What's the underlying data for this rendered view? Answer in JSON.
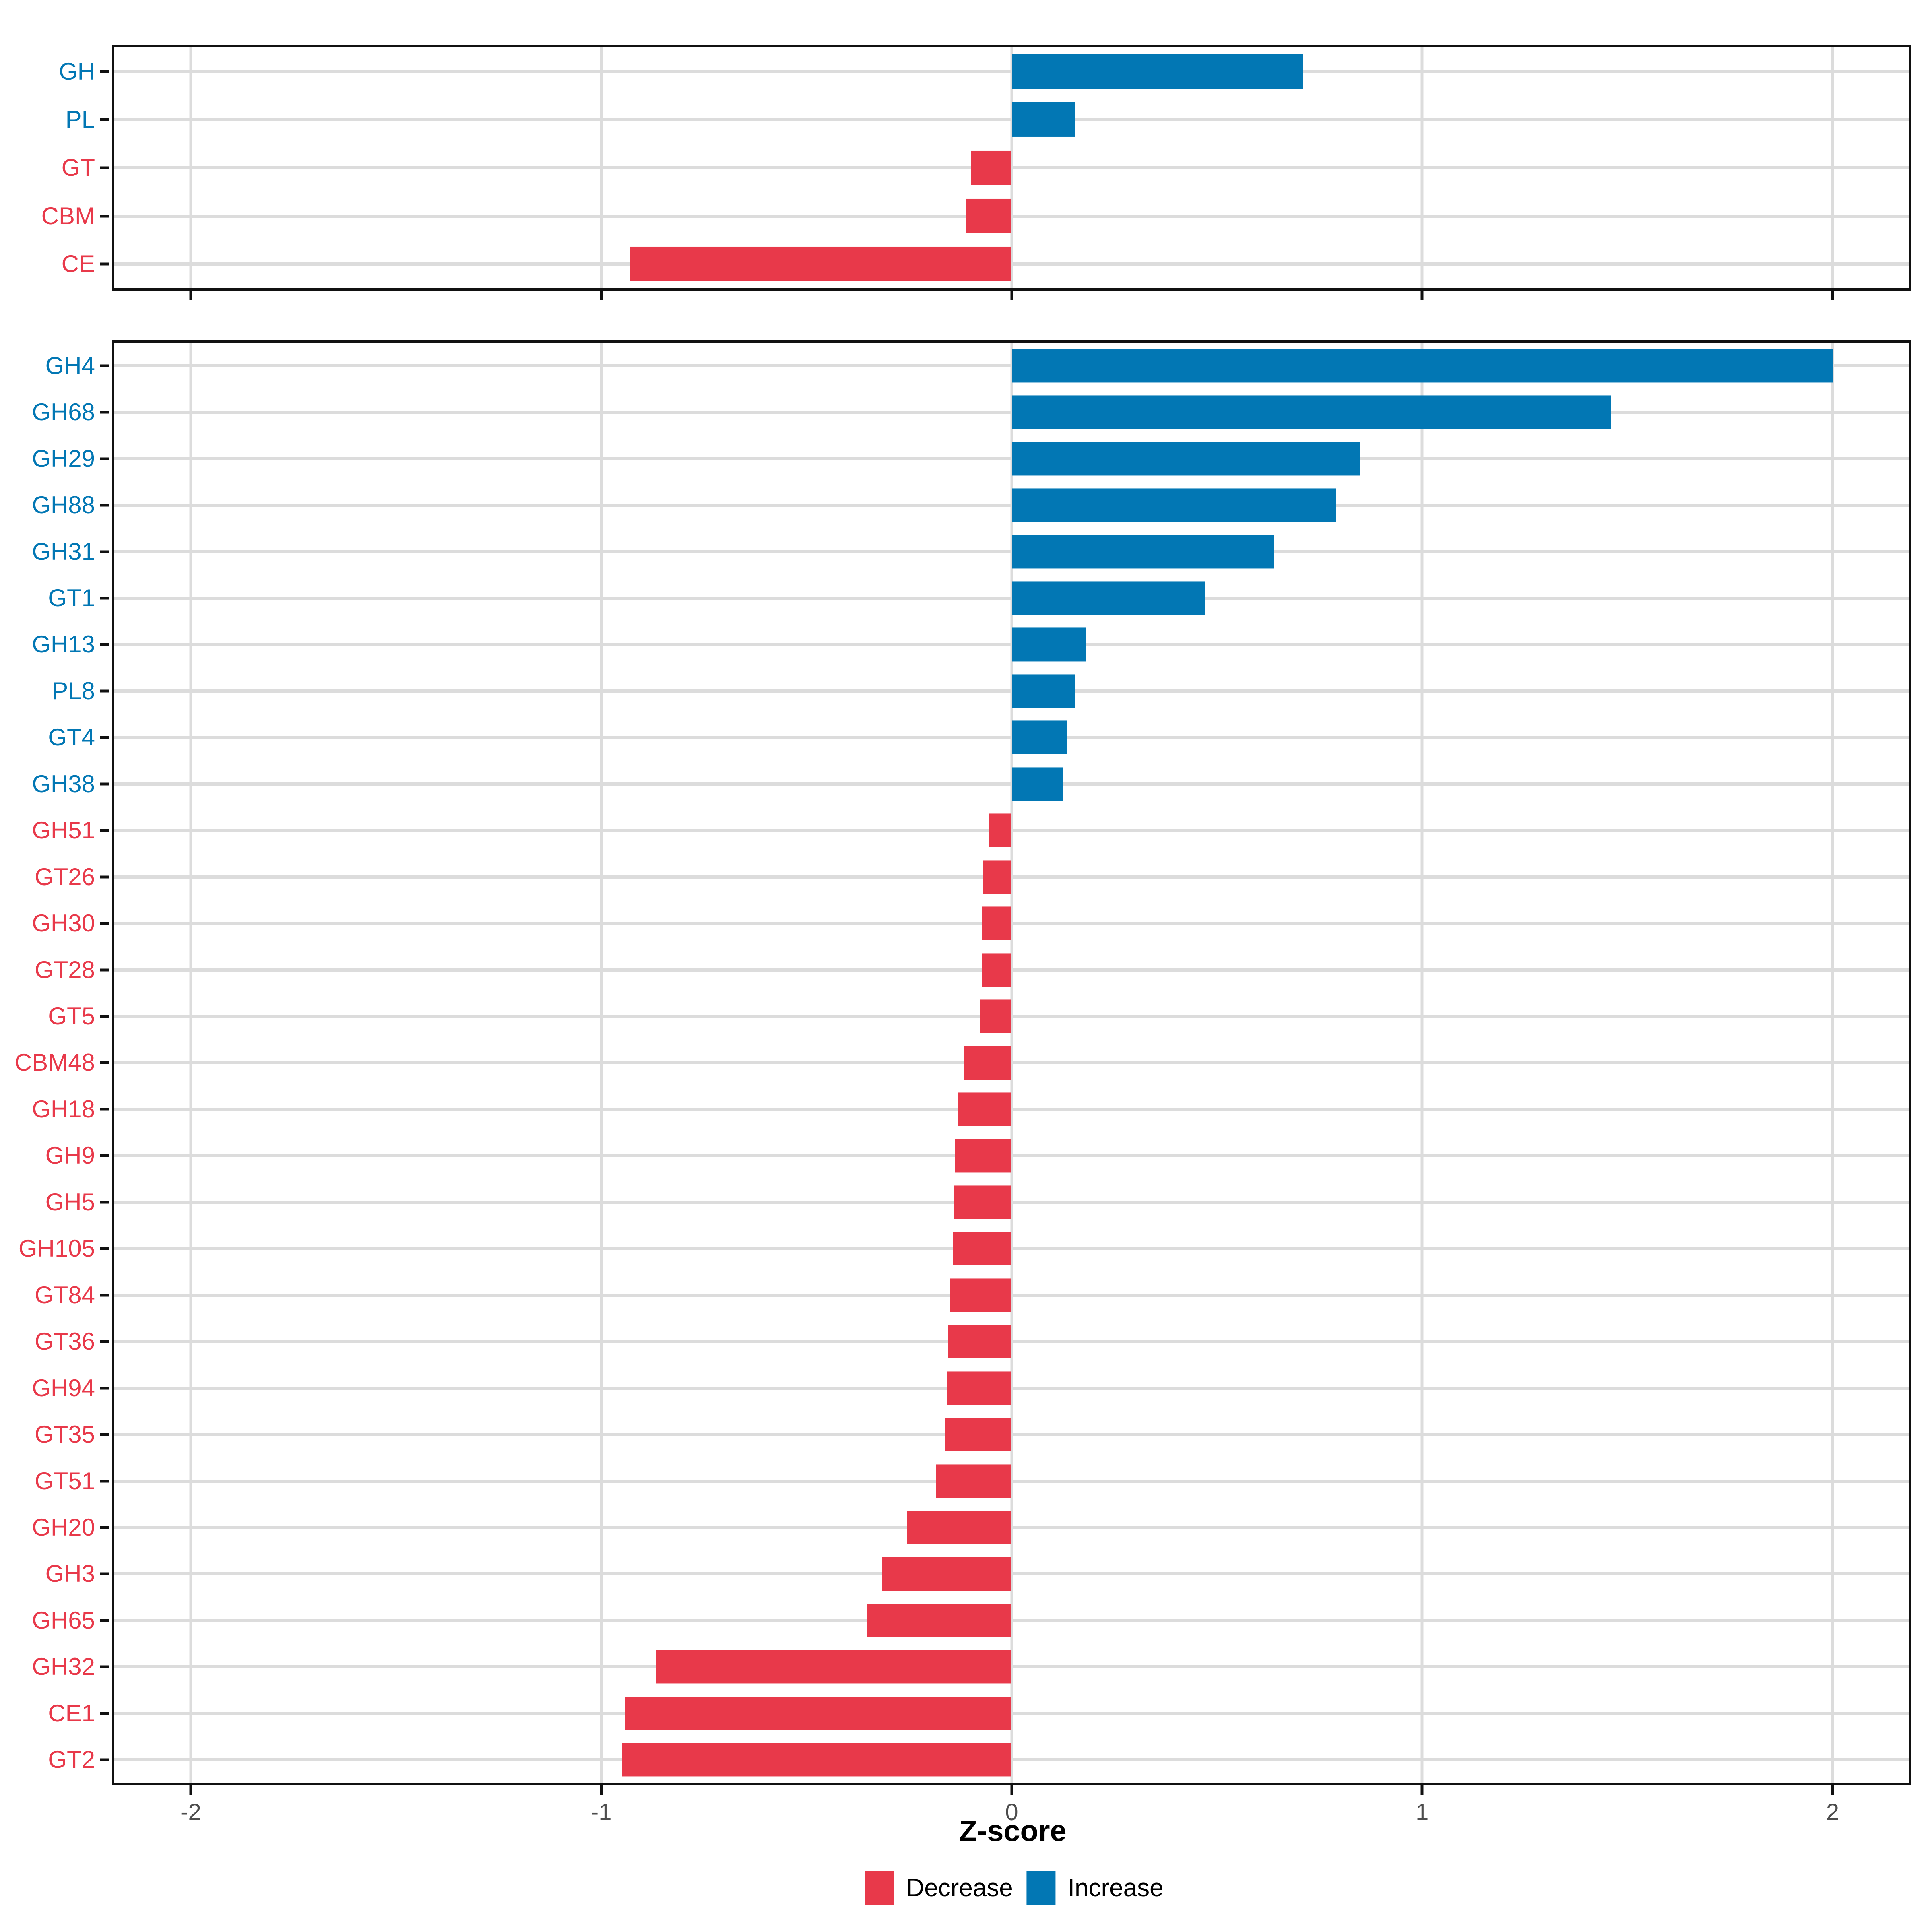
{
  "chart_data": {
    "type": "bar",
    "orientation": "horizontal",
    "xlabel": "Z-score",
    "x_ticks": [
      -2,
      -1,
      0,
      1,
      2
    ],
    "xlim": [
      -2.19,
      2.19
    ],
    "grid": true,
    "legend_position": "bottom",
    "colors": {
      "increase": "#0277B4",
      "decrease": "#E8394A"
    },
    "legend": [
      {
        "label": "Decrease",
        "key": "decrease"
      },
      {
        "label": "Increase",
        "key": "increase"
      }
    ],
    "panels": [
      {
        "name": "cazyme-class-summary",
        "categories": [
          "GH",
          "PL",
          "GT",
          "CBM",
          "CE"
        ],
        "values": [
          0.71,
          0.155,
          -0.1,
          -0.11,
          -0.93
        ]
      },
      {
        "name": "cazyme-family-detail",
        "categories": [
          "GH4",
          "GH68",
          "GH29",
          "GH88",
          "GH31",
          "GT1",
          "GH13",
          "PL8",
          "GT4",
          "GH38",
          "GH51",
          "GT26",
          "GH30",
          "GT28",
          "GT5",
          "CBM48",
          "GH18",
          "GH9",
          "GH5",
          "GH105",
          "GT84",
          "GT36",
          "GH94",
          "GT35",
          "GT51",
          "GH20",
          "GH3",
          "GH65",
          "GH32",
          "CE1",
          "GT2"
        ],
        "values": [
          2.0,
          1.46,
          0.85,
          0.79,
          0.64,
          0.47,
          0.18,
          0.155,
          0.135,
          0.125,
          -0.055,
          -0.07,
          -0.072,
          -0.073,
          -0.078,
          -0.115,
          -0.132,
          -0.138,
          -0.141,
          -0.144,
          -0.15,
          -0.154,
          -0.157,
          -0.163,
          -0.185,
          -0.255,
          -0.315,
          -0.353,
          -0.866,
          -0.941,
          -0.949
        ]
      }
    ]
  },
  "style": {
    "tick_label_color": "#4D4D4D",
    "grid_color": "#DCDCDC",
    "panel_border_color": "#111111",
    "background": "#ffffff"
  }
}
